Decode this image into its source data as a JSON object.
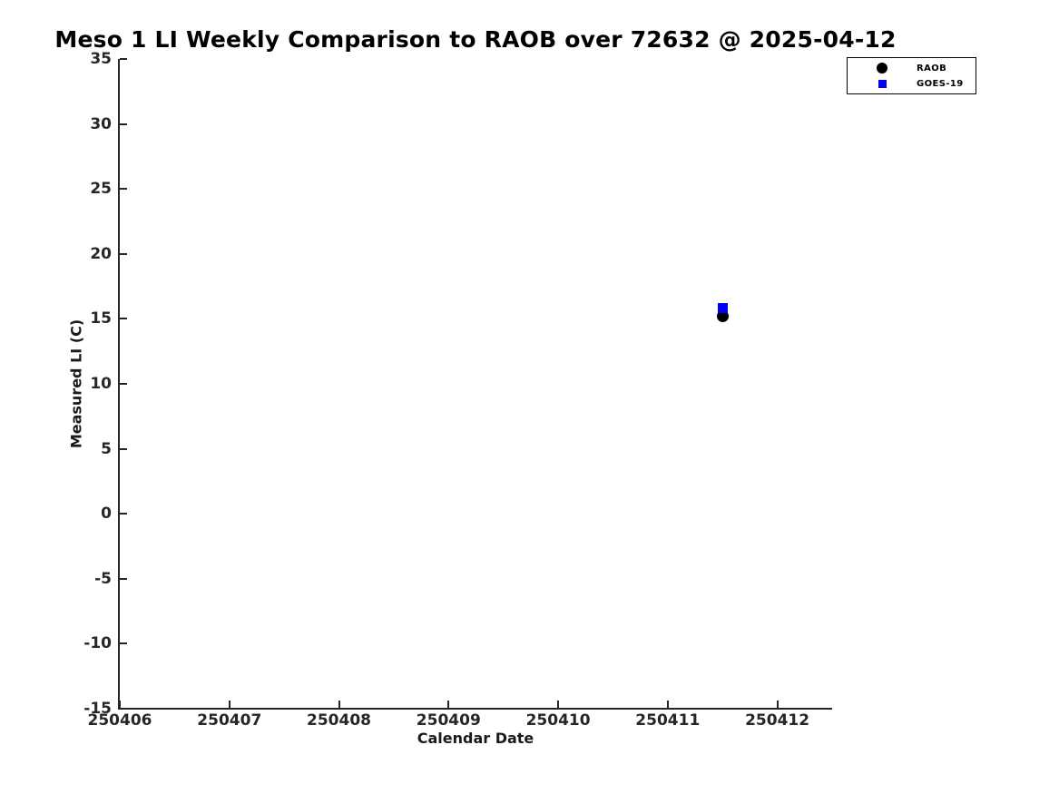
{
  "chart_data": {
    "type": "scatter",
    "title": "Meso 1 LI Weekly Comparison to RAOB over 72632 @ 2025-04-12",
    "xlabel": "Calendar Date",
    "ylabel": "Measured LI (C)",
    "xlim": [
      250406,
      250412.5
    ],
    "ylim": [
      -15,
      35
    ],
    "x_ticks": [
      250406,
      250407,
      250408,
      250409,
      250410,
      250411,
      250412
    ],
    "y_ticks": [
      35,
      30,
      25,
      20,
      15,
      10,
      5,
      0,
      -5,
      -10,
      -15
    ],
    "grid": false,
    "legend": {
      "position": "upper-right",
      "entries": [
        "RAOB",
        "GOES-19"
      ]
    },
    "series": [
      {
        "name": "RAOB",
        "marker": "circle",
        "color": "#000000",
        "points": [
          {
            "x": 250411.5,
            "y": 15.2
          }
        ]
      },
      {
        "name": "GOES-19",
        "marker": "square",
        "color": "#0000ff",
        "points": [
          {
            "x": 250411.5,
            "y": 15.8
          }
        ]
      }
    ]
  },
  "colors": {
    "background": "#ffffff",
    "axis": "#262626",
    "tick_text": "#262626",
    "title_text": "#000000",
    "raob": "#000000",
    "goes19": "#0000ff"
  }
}
